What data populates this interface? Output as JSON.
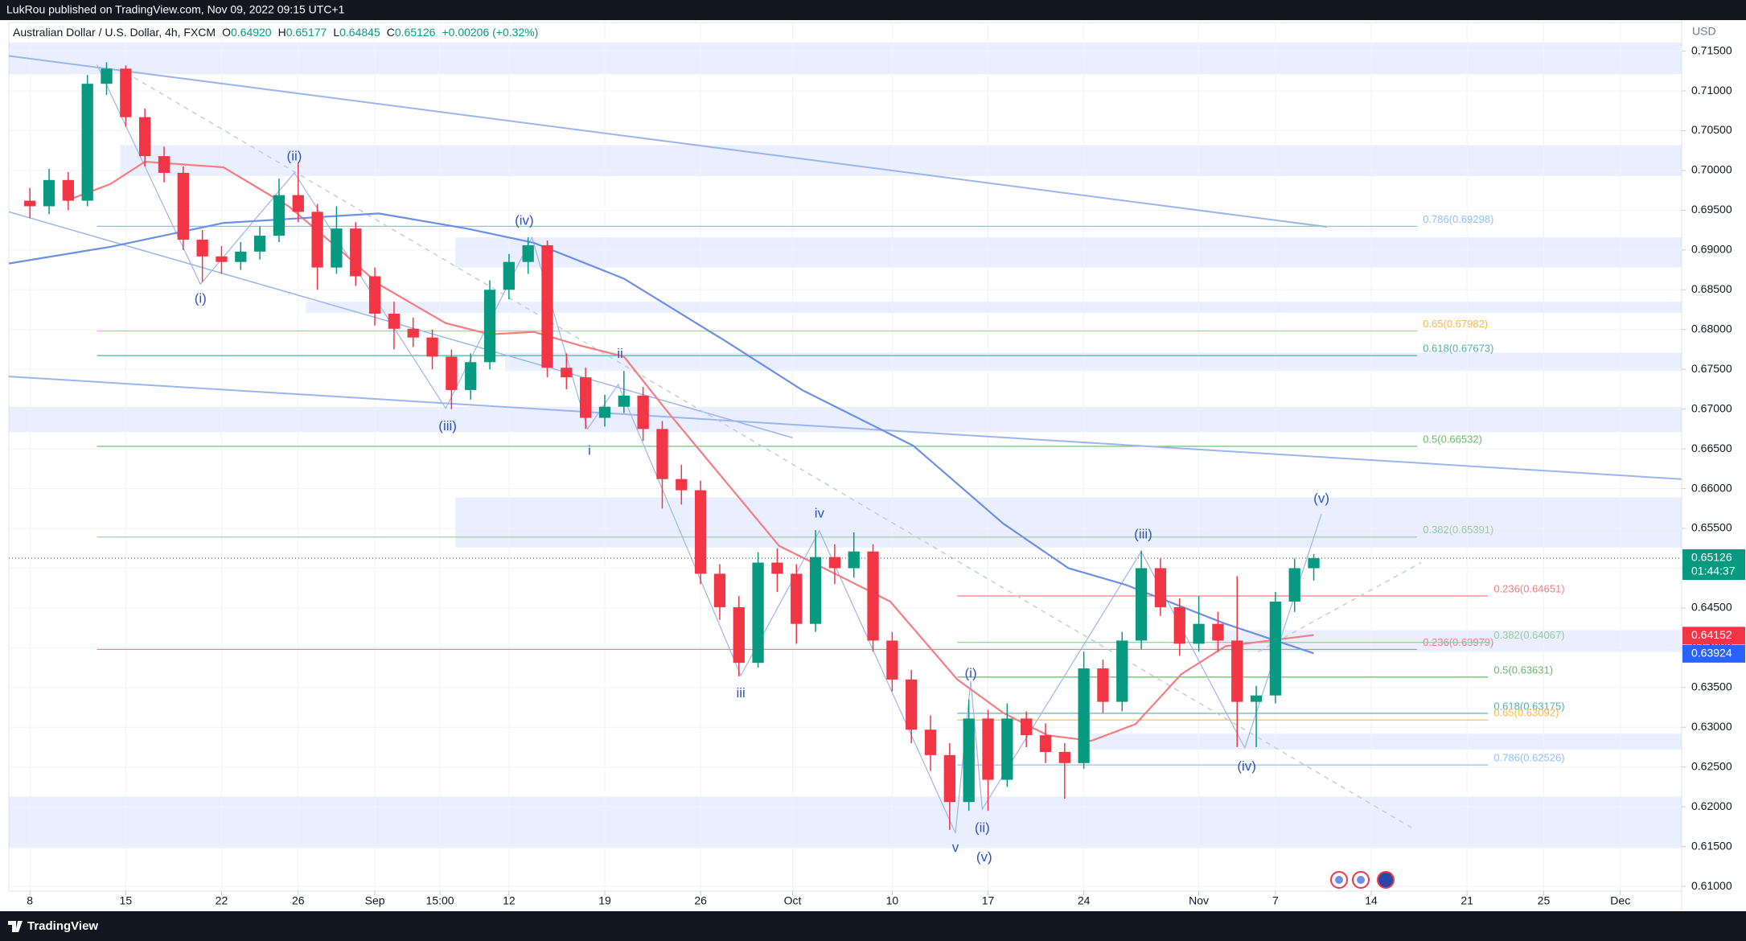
{
  "header": {
    "text": "LukRou published on TradingView.com, Nov 09, 2022 09:15 UTC+1"
  },
  "footer": {
    "brand": "TradingView"
  },
  "chart_data": {
    "type": "candlestick",
    "symbol": "Australian Dollar / U.S. Dollar, 4h, FXCM",
    "ohlc_legend": [
      {
        "key": "O",
        "value": "0.64920"
      },
      {
        "key": "H",
        "value": "0.65177"
      },
      {
        "key": "L",
        "value": "0.64845"
      },
      {
        "key": "C",
        "value": "0.65126"
      }
    ],
    "change": "+0.00206 (+0.32%)",
    "y_axis_label": "USD",
    "up_color": "#089981",
    "down_color": "#f23645",
    "x": [
      0,
      1,
      2,
      3,
      4,
      5,
      6,
      7,
      8,
      9,
      10,
      11,
      12,
      13,
      14,
      15,
      16,
      17,
      18,
      19,
      20,
      21,
      22,
      23,
      24,
      25,
      26,
      27,
      28,
      29,
      30,
      31,
      32,
      33,
      34,
      35,
      36,
      37,
      38,
      39,
      40,
      41,
      42,
      43,
      44,
      45,
      46,
      47,
      48,
      49,
      50,
      51,
      52,
      53,
      54,
      55,
      56,
      57,
      58,
      59,
      60,
      61,
      62,
      63,
      64,
      65,
      66,
      67
    ],
    "open": [
      0.6962,
      0.6955,
      0.6988,
      0.6962,
      0.7109,
      0.7128,
      0.7067,
      0.7018,
      0.6997,
      0.6913,
      0.6892,
      0.6885,
      0.6898,
      0.6918,
      0.6969,
      0.6948,
      0.6878,
      0.6927,
      0.6867,
      0.682,
      0.6801,
      0.679,
      0.6766,
      0.6724,
      0.6759,
      0.685,
      0.6885,
      0.6906,
      0.6752,
      0.674,
      0.6689,
      0.6703,
      0.6717,
      0.6675,
      0.6612,
      0.6598,
      0.6493,
      0.6451,
      0.6381,
      0.6507,
      0.6493,
      0.643,
      0.6514,
      0.65,
      0.6521,
      0.6409,
      0.636,
      0.6297,
      0.6265,
      0.6206,
      0.6311,
      0.6234,
      0.6311,
      0.629,
      0.6269,
      0.6255,
      0.6374,
      0.6332,
      0.6409,
      0.65,
      0.6451,
      0.6405,
      0.643,
      0.6409,
      0.6332,
      0.634,
      0.6458,
      0.65
    ],
    "high": [
      0.6978,
      0.7002,
      0.6998,
      0.712,
      0.7136,
      0.7132,
      0.7078,
      0.703,
      0.7005,
      0.6925,
      0.6905,
      0.691,
      0.693,
      0.699,
      0.701,
      0.6958,
      0.6955,
      0.6935,
      0.6878,
      0.6835,
      0.6815,
      0.68,
      0.6775,
      0.677,
      0.6862,
      0.6895,
      0.6916,
      0.6912,
      0.677,
      0.6752,
      0.6718,
      0.6748,
      0.6728,
      0.6685,
      0.663,
      0.661,
      0.6505,
      0.6465,
      0.652,
      0.6525,
      0.6505,
      0.6548,
      0.653,
      0.6545,
      0.653,
      0.642,
      0.6372,
      0.6315,
      0.628,
      0.6335,
      0.6322,
      0.633,
      0.632,
      0.6305,
      0.628,
      0.6395,
      0.6385,
      0.642,
      0.6522,
      0.6512,
      0.6462,
      0.6465,
      0.6445,
      0.649,
      0.6352,
      0.647,
      0.6512,
      0.65177
    ],
    "low": [
      0.694,
      0.6945,
      0.695,
      0.6955,
      0.7095,
      0.7055,
      0.7005,
      0.6985,
      0.69,
      0.686,
      0.687,
      0.6875,
      0.6888,
      0.691,
      0.6935,
      0.685,
      0.687,
      0.6855,
      0.6805,
      0.6775,
      0.6778,
      0.675,
      0.67,
      0.6712,
      0.675,
      0.6838,
      0.687,
      0.674,
      0.6725,
      0.6675,
      0.6678,
      0.6695,
      0.666,
      0.6575,
      0.658,
      0.648,
      0.6435,
      0.6364,
      0.6375,
      0.647,
      0.6405,
      0.642,
      0.648,
      0.6488,
      0.6395,
      0.6345,
      0.628,
      0.6245,
      0.6171,
      0.6195,
      0.6195,
      0.6225,
      0.6275,
      0.6255,
      0.621,
      0.6248,
      0.6318,
      0.632,
      0.6398,
      0.644,
      0.639,
      0.6395,
      0.6395,
      0.6275,
      0.6275,
      0.633,
      0.6445,
      0.64845
    ],
    "close": [
      0.6955,
      0.6988,
      0.6962,
      0.7109,
      0.7128,
      0.7067,
      0.7018,
      0.6997,
      0.6913,
      0.6892,
      0.6885,
      0.6898,
      0.6918,
      0.6969,
      0.6948,
      0.6878,
      0.6927,
      0.6867,
      0.682,
      0.6801,
      0.679,
      0.6766,
      0.6724,
      0.6759,
      0.685,
      0.6885,
      0.6906,
      0.6752,
      0.674,
      0.6689,
      0.6703,
      0.6717,
      0.6675,
      0.6612,
      0.6598,
      0.6493,
      0.6451,
      0.6381,
      0.6507,
      0.6493,
      0.643,
      0.6514,
      0.65,
      0.6521,
      0.6409,
      0.636,
      0.6297,
      0.6265,
      0.6206,
      0.6311,
      0.6234,
      0.6311,
      0.629,
      0.6269,
      0.6255,
      0.6374,
      0.6332,
      0.6409,
      0.65,
      0.6451,
      0.6405,
      0.643,
      0.6409,
      0.6332,
      0.634,
      0.6458,
      0.65,
      0.65126
    ],
    "xlim": [
      -1.1,
      86.2
    ],
    "xticks": [
      {
        "value": 0,
        "label": "8"
      },
      {
        "value": 5,
        "label": "15"
      },
      {
        "value": 10,
        "label": "22"
      },
      {
        "value": 14,
        "label": "26"
      },
      {
        "value": 18,
        "label": "Sep"
      },
      {
        "value": 21.4,
        "label": "15:00"
      },
      {
        "value": 25,
        "label": "12"
      },
      {
        "value": 30,
        "label": "19"
      },
      {
        "value": 35,
        "label": "26"
      },
      {
        "value": 39.8,
        "label": "Oct"
      },
      {
        "value": 45,
        "label": "10"
      },
      {
        "value": 50,
        "label": "17"
      },
      {
        "value": 55,
        "label": "24"
      },
      {
        "value": 61,
        "label": "Nov"
      },
      {
        "value": 65,
        "label": "7"
      },
      {
        "value": 70,
        "label": "14"
      },
      {
        "value": 75,
        "label": "21"
      },
      {
        "value": 79,
        "label": "25"
      },
      {
        "value": 83,
        "label": "Dec"
      }
    ],
    "ylim": [
      0.6094,
      0.7186
    ],
    "yticks": [
      {
        "value": 0.61,
        "label": "0.61000"
      },
      {
        "value": 0.615,
        "label": "0.61500"
      },
      {
        "value": 0.62,
        "label": "0.62000"
      },
      {
        "value": 0.625,
        "label": "0.62500"
      },
      {
        "value": 0.63,
        "label": "0.63000"
      },
      {
        "value": 0.635,
        "label": "0.63500"
      },
      {
        "value": 0.64,
        "label": "0.64000"
      },
      {
        "value": 0.645,
        "label": "0.64500"
      },
      {
        "value": 0.65,
        "label": "0.65000"
      },
      {
        "value": 0.655,
        "label": "0.65500"
      },
      {
        "value": 0.66,
        "label": "0.66000"
      },
      {
        "value": 0.665,
        "label": "0.66500"
      },
      {
        "value": 0.67,
        "label": "0.67000"
      },
      {
        "value": 0.675,
        "label": "0.67500"
      },
      {
        "value": 0.68,
        "label": "0.68000"
      },
      {
        "value": 0.685,
        "label": "0.68500"
      },
      {
        "value": 0.69,
        "label": "0.69000"
      },
      {
        "value": 0.695,
        "label": "0.69500"
      },
      {
        "value": 0.7,
        "label": "0.70000"
      },
      {
        "value": 0.705,
        "label": "0.70500"
      },
      {
        "value": 0.71,
        "label": "0.71000"
      },
      {
        "value": 0.715,
        "label": "0.71500"
      }
    ],
    "grid": true,
    "zones": [
      {
        "x": [
          -1.1,
          86.2
        ],
        "range": [
          0.7121,
          0.7161
        ]
      },
      {
        "x": [
          4.7,
          86.2
        ],
        "range": [
          0.6993,
          0.7032
        ]
      },
      {
        "x": [
          22.2,
          86.2
        ],
        "range": [
          0.6878,
          0.6916
        ]
      },
      {
        "x": [
          14.4,
          86.2
        ],
        "range": [
          0.6821,
          0.6835
        ]
      },
      {
        "x": [
          24.8,
          86.2
        ],
        "range": [
          0.6748,
          0.6771
        ]
      },
      {
        "x": [
          -1.1,
          86.2
        ],
        "range": [
          0.6671,
          0.6703
        ]
      },
      {
        "x": [
          22.2,
          86.2
        ],
        "range": [
          0.6526,
          0.6589
        ]
      },
      {
        "x": [
          61.8,
          86.2
        ],
        "range": [
          0.6395,
          0.6422
        ]
      },
      {
        "x": [
          55.4,
          86.2
        ],
        "range": [
          0.6272,
          0.6292
        ]
      },
      {
        "x": [
          -1.1,
          86.2
        ],
        "range": [
          0.6148,
          0.6213
        ]
      }
    ],
    "moving_averages": [
      {
        "color": "#f77c80",
        "x": [
          1.9,
          4.2,
          6.0,
          10.1,
          13.5,
          15.9,
          18.2,
          21.7,
          24.0,
          26.3,
          28.7,
          31.0,
          33.3,
          36.2,
          39.1,
          42.6,
          44.9,
          48.4,
          50.8,
          53.1,
          55.4,
          57.7,
          60.1,
          62.4,
          64.7,
          67.0
        ],
        "values": [
          0.6962,
          0.6983,
          0.7011,
          0.7004,
          0.6955,
          0.6906,
          0.6857,
          0.6808,
          0.6794,
          0.6797,
          0.678,
          0.6766,
          0.6696,
          0.6612,
          0.6528,
          0.6486,
          0.6458,
          0.636,
          0.6318,
          0.629,
          0.6283,
          0.6304,
          0.6367,
          0.6402,
          0.6409,
          0.6416
        ]
      },
      {
        "color": "#6d8fe8",
        "x": [
          -1.1,
          4.2,
          10.1,
          18.2,
          22.8,
          26.3,
          31.0,
          36.2,
          40.3,
          46.1,
          50.8,
          54.2,
          57.2,
          62.4,
          67.0
        ],
        "values": [
          0.6883,
          0.6904,
          0.6934,
          0.6946,
          0.6927,
          0.6909,
          0.6864,
          0.6787,
          0.6724,
          0.6654,
          0.6556,
          0.65,
          0.6479,
          0.643,
          0.6393
        ]
      }
    ],
    "trendlines": [
      {
        "color": "#9db5ee",
        "width": 2,
        "dashed": false,
        "x": [
          -1.1,
          67.7
        ],
        "values": [
          0.7144,
          0.6929
        ]
      },
      {
        "color": "#9db5ee",
        "width": 2,
        "dashed": false,
        "x": [
          -1.1,
          86.2
        ],
        "values": [
          0.6741,
          0.6612
        ]
      },
      {
        "color": "#9db5ee",
        "width": 1.5,
        "dashed": false,
        "x": [
          -1.1,
          39.8
        ],
        "values": [
          0.6948,
          0.6664
        ]
      },
      {
        "color": "#c8ccd6",
        "width": 1.5,
        "dashed": true,
        "x": [
          5.0,
          72.3
        ],
        "values": [
          0.7123,
          0.6171
        ]
      },
      {
        "color": "#c8ccd6",
        "width": 1.5,
        "dashed": true,
        "x": [
          64.1,
          72.6
        ],
        "values": [
          0.6395,
          0.6507
        ]
      },
      {
        "color": "#9db5ee",
        "width": 1.2,
        "dashed": false,
        "x": [
          3.5,
          8.9,
          13.8,
          21.7,
          26.2,
          29.1,
          30.7,
          37.1,
          41.2,
          48.3
        ],
        "values": [
          0.7133,
          0.6857,
          0.6997,
          0.6701,
          0.6916,
          0.6675,
          0.6731,
          0.6365,
          0.6547,
          0.6167
        ]
      },
      {
        "color": "#9db5ee",
        "width": 1.2,
        "dashed": false,
        "x": [
          48.3,
          49.1,
          49.7,
          58.0,
          63.4,
          67.4
        ],
        "values": [
          0.6167,
          0.6358,
          0.6197,
          0.6521,
          0.6274,
          0.6568
        ]
      }
    ],
    "fib_levels": [
      {
        "x": [
          3.5,
          72.4
        ],
        "value": 0.69298,
        "label": "0.786(0.69298)",
        "color": "#90bff9"
      },
      {
        "x": [
          3.5,
          72.4
        ],
        "value": 0.67982,
        "label": "0.65(0.67982)",
        "color": "#ffb74d"
      },
      {
        "x": [
          3.5,
          72.4
        ],
        "value": 0.67673,
        "label": "0.618(0.67673)",
        "color": "#4fb1a9"
      },
      {
        "x": [
          3.5,
          72.4
        ],
        "value": 0.66532,
        "label": "0.5(0.66532)",
        "color": "#66bb6a"
      },
      {
        "x": [
          3.5,
          72.4
        ],
        "value": 0.65391,
        "label": "0.382(0.65391)",
        "color": "#9ccc9c"
      },
      {
        "x": [
          3.5,
          72.4
        ],
        "value": 0.63979,
        "label": "0.236(0.63979)",
        "color": "#f77c80"
      },
      {
        "x": [
          48.4,
          76.1
        ],
        "value": 0.64651,
        "label": "0.236(0.64651)",
        "color": "#f77c80"
      },
      {
        "x": [
          48.4,
          76.1
        ],
        "value": 0.64067,
        "label": "0.382(0.64067)",
        "color": "#9ccc9c"
      },
      {
        "x": [
          48.4,
          76.1
        ],
        "value": 0.63631,
        "label": "0.5(0.63631)",
        "color": "#66bb6a"
      },
      {
        "x": [
          48.4,
          76.1
        ],
        "value": 0.63175,
        "label": "0.618(0.63175)",
        "color": "#4fb1a9"
      },
      {
        "x": [
          48.4,
          76.1
        ],
        "value": 0.63092,
        "label": "0.65(0.63092)",
        "color": "#ffb74d"
      },
      {
        "x": [
          48.4,
          76.1
        ],
        "value": 0.62526,
        "label": "0.786(0.62526)",
        "color": "#90bff9"
      }
    ],
    "annotations": [
      {
        "text": "(i)",
        "x": 8.9,
        "y": 0.6838
      },
      {
        "text": "(ii)",
        "x": 13.8,
        "y": 0.7017
      },
      {
        "text": "(iii)",
        "x": 21.8,
        "y": 0.6678
      },
      {
        "text": "(iv)",
        "x": 25.8,
        "y": 0.6936
      },
      {
        "text": "i",
        "x": 29.2,
        "y": 0.6647
      },
      {
        "text": "ii",
        "x": 30.8,
        "y": 0.6769
      },
      {
        "text": "iii",
        "x": 37.1,
        "y": 0.6342
      },
      {
        "text": "iv",
        "x": 41.2,
        "y": 0.6568
      },
      {
        "text": "v",
        "x": 48.3,
        "y": 0.6148
      },
      {
        "text": "(i)",
        "x": 49.1,
        "y": 0.6367
      },
      {
        "text": "(ii)",
        "x": 49.7,
        "y": 0.6173
      },
      {
        "text": "(v)",
        "x": 49.8,
        "y": 0.6136
      },
      {
        "text": "(iii)",
        "x": 58.1,
        "y": 0.6542
      },
      {
        "text": "(iv)",
        "x": 63.5,
        "y": 0.625
      },
      {
        "text": "(v)",
        "x": 67.4,
        "y": 0.6587
      }
    ],
    "price_labels": [
      {
        "value": 0.65126,
        "label": "0.65126",
        "countdown": "01:44:37",
        "color": "#089981"
      },
      {
        "value": 0.64152,
        "label": "0.64152",
        "color": "#f23645"
      },
      {
        "value": 0.63924,
        "label": "0.63924",
        "color": "#2962ff"
      }
    ]
  }
}
